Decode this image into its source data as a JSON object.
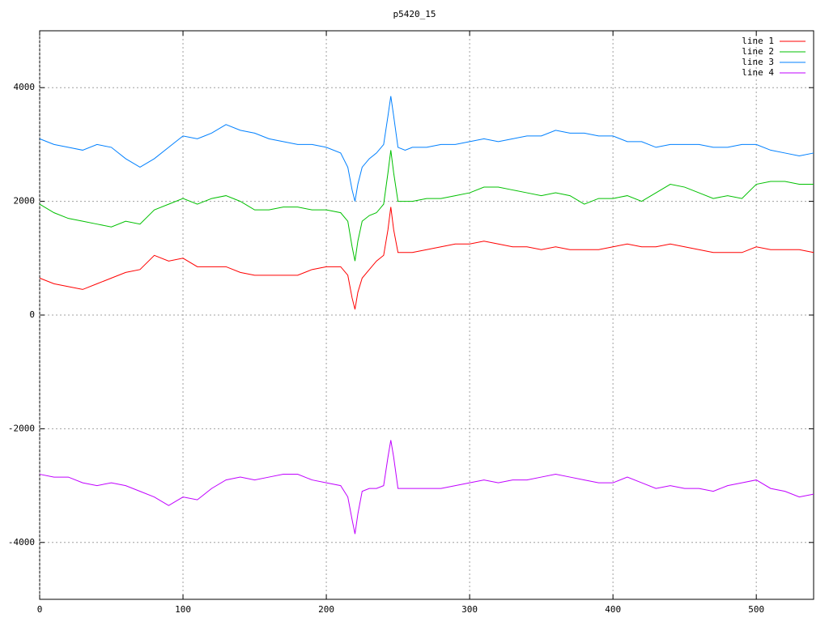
{
  "chart_data": {
    "type": "line",
    "title": "p5420_15",
    "x": [
      0,
      10,
      20,
      30,
      40,
      50,
      60,
      70,
      80,
      90,
      100,
      110,
      120,
      130,
      140,
      150,
      160,
      170,
      180,
      190,
      200,
      210,
      215,
      218,
      220,
      222,
      225,
      230,
      235,
      240,
      243,
      245,
      247,
      250,
      255,
      260,
      270,
      280,
      290,
      300,
      310,
      320,
      330,
      340,
      350,
      360,
      370,
      380,
      390,
      400,
      410,
      420,
      430,
      440,
      450,
      460,
      470,
      480,
      490,
      500,
      510,
      520,
      530,
      540
    ],
    "series": [
      {
        "name": "line 1",
        "color": "#ff0000",
        "values": [
          650,
          550,
          500,
          450,
          550,
          650,
          750,
          800,
          1050,
          950,
          1000,
          850,
          850,
          850,
          750,
          700,
          700,
          700,
          700,
          800,
          850,
          850,
          700,
          300,
          100,
          400,
          650,
          800,
          950,
          1050,
          1500,
          1900,
          1500,
          1100,
          1100,
          1100,
          1150,
          1200,
          1250,
          1250,
          1300,
          1250,
          1200,
          1200,
          1150,
          1200,
          1150,
          1150,
          1150,
          1200,
          1250,
          1200,
          1200,
          1250,
          1200,
          1150,
          1100,
          1100,
          1100,
          1200,
          1150,
          1150,
          1150,
          1100
        ]
      },
      {
        "name": "line 2",
        "color": "#00c000",
        "values": [
          1950,
          1800,
          1700,
          1650,
          1600,
          1550,
          1650,
          1600,
          1850,
          1950,
          2050,
          1950,
          2050,
          2100,
          2000,
          1850,
          1850,
          1900,
          1900,
          1850,
          1850,
          1800,
          1650,
          1200,
          950,
          1300,
          1650,
          1750,
          1800,
          1950,
          2500,
          2900,
          2500,
          2000,
          2000,
          2000,
          2050,
          2050,
          2100,
          2150,
          2250,
          2250,
          2200,
          2150,
          2100,
          2150,
          2100,
          1950,
          2050,
          2050,
          2100,
          2000,
          2150,
          2300,
          2250,
          2150,
          2050,
          2100,
          2050,
          2300,
          2350,
          2350,
          2300,
          2300
        ]
      },
      {
        "name": "line 3",
        "color": "#0080ff",
        "values": [
          3100,
          3000,
          2950,
          2900,
          3000,
          2950,
          2750,
          2600,
          2750,
          2950,
          3150,
          3100,
          3200,
          3350,
          3250,
          3200,
          3100,
          3050,
          3000,
          3000,
          2950,
          2850,
          2600,
          2200,
          2000,
          2300,
          2600,
          2750,
          2850,
          3000,
          3500,
          3850,
          3500,
          2950,
          2900,
          2950,
          2950,
          3000,
          3000,
          3050,
          3100,
          3050,
          3100,
          3150,
          3150,
          3250,
          3200,
          3200,
          3150,
          3150,
          3050,
          3050,
          2950,
          3000,
          3000,
          3000,
          2950,
          2950,
          3000,
          3000,
          2900,
          2850,
          2800,
          2850
        ]
      },
      {
        "name": "line 4",
        "color": "#c000ff",
        "values": [
          -2800,
          -2850,
          -2850,
          -2950,
          -3000,
          -2950,
          -3000,
          -3100,
          -3200,
          -3350,
          -3200,
          -3250,
          -3050,
          -2900,
          -2850,
          -2900,
          -2850,
          -2800,
          -2800,
          -2900,
          -2950,
          -3000,
          -3200,
          -3600,
          -3850,
          -3500,
          -3100,
          -3050,
          -3050,
          -3000,
          -2500,
          -2200,
          -2500,
          -3050,
          -3050,
          -3050,
          -3050,
          -3050,
          -3000,
          -2950,
          -2900,
          -2950,
          -2900,
          -2900,
          -2850,
          -2800,
          -2850,
          -2900,
          -2950,
          -2950,
          -2850,
          -2950,
          -3050,
          -3000,
          -3050,
          -3050,
          -3100,
          -3000,
          -2950,
          -2900,
          -3050,
          -3100,
          -3200,
          -3150
        ]
      }
    ],
    "xlim": [
      0,
      540
    ],
    "xticks": [
      0,
      100,
      200,
      300,
      400,
      500
    ],
    "ylim": [
      -5000,
      5000
    ],
    "yticks": [
      -4000,
      -2000,
      0,
      2000,
      4000
    ],
    "grid": true,
    "legend": "top-right"
  }
}
